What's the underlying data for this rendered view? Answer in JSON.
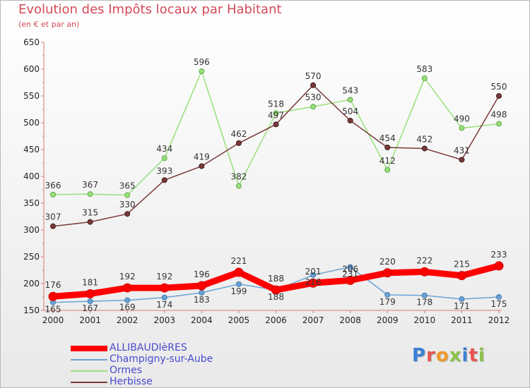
{
  "title": "Evolution des Impôts locaux par Habitant",
  "subtitle": "(en € et par an)",
  "logo": "Proxiti",
  "chart_data": {
    "type": "line",
    "x": [
      "2000",
      "2001",
      "2002",
      "2003",
      "2004",
      "2005",
      "2006",
      "2007",
      "2008",
      "2009",
      "2010",
      "2011",
      "2012"
    ],
    "ylim": [
      150,
      650
    ],
    "yticks": [
      150,
      200,
      250,
      300,
      350,
      400,
      450,
      500,
      550,
      600,
      650
    ],
    "grid": false,
    "legend_position": "bottom-left",
    "series": [
      {
        "name": "ALLIBAUDIèRES",
        "color": "#ff0000",
        "values": [
          176,
          181,
          192,
          192,
          196,
          221,
          188,
          201,
          206,
          220,
          222,
          215,
          233
        ],
        "value_labels": [
          "176",
          "181",
          "192",
          "192",
          "196",
          "221",
          "188",
          "201",
          "206",
          "220",
          "222",
          "215",
          "233"
        ]
      },
      {
        "name": "Champigny-sur-Aube",
        "color": "#6aa3d5",
        "values": [
          165,
          167,
          169,
          174,
          183,
          199,
          188,
          216,
          231,
          179,
          178,
          171,
          175
        ],
        "value_labels": [
          "165",
          "167",
          "169",
          "174",
          "183",
          "199",
          "188",
          "216",
          "231",
          "179",
          "178",
          "171",
          "175"
        ]
      },
      {
        "name": "Ormes",
        "color": "#99e07a",
        "values": [
          366,
          367,
          365,
          434,
          596,
          382,
          518,
          530,
          543,
          412,
          583,
          490,
          498
        ],
        "value_labels": [
          "366",
          "367",
          "365",
          "434",
          "596",
          "382",
          "518",
          "530",
          "543",
          "412",
          "583",
          "490",
          "498"
        ]
      },
      {
        "name": "Herbisse",
        "color": "#7a3a3a",
        "values": [
          307,
          315,
          330,
          393,
          419,
          462,
          497,
          570,
          504,
          454,
          452,
          431,
          550
        ],
        "value_labels": [
          "307",
          "315",
          "330",
          "393",
          "419",
          "462",
          "497",
          "570",
          "504",
          "454",
          "452",
          "431",
          "550"
        ]
      }
    ]
  }
}
